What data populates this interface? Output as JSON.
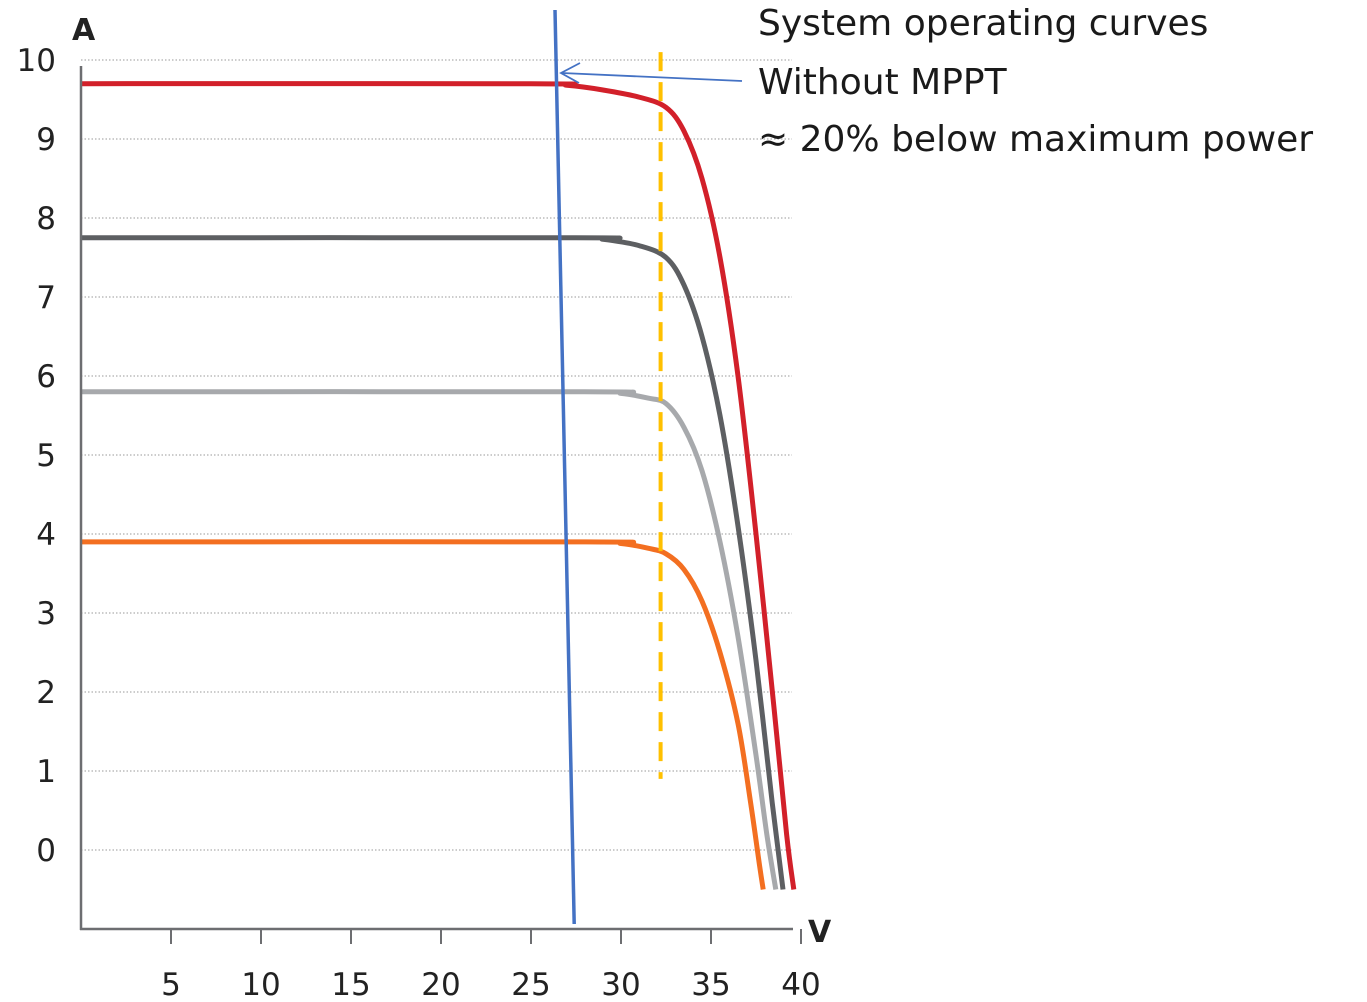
{
  "chart_data": {
    "type": "line",
    "xlabel": "V",
    "ylabel": "A",
    "xlim": [
      0,
      40
    ],
    "ylim": [
      -0.5,
      10
    ],
    "x_ticks": [
      "5",
      "10",
      "15",
      "20",
      "25",
      "30",
      "35",
      "40"
    ],
    "y_ticks": [
      "0",
      "1",
      "2",
      "3",
      "4",
      "5",
      "6",
      "7",
      "8",
      "9",
      "10"
    ],
    "grid": "horizontal-dotted",
    "series": [
      {
        "color": "#d2202a",
        "isc": 9.7,
        "knee_v": 32.5,
        "knee_i": 9.4,
        "voc": 39.6,
        "points": [
          [
            0,
            9.7
          ],
          [
            25,
            9.7
          ],
          [
            27,
            9.68
          ],
          [
            29,
            9.62
          ],
          [
            31,
            9.53
          ],
          [
            32.5,
            9.4
          ],
          [
            33.5,
            9.1
          ],
          [
            34.5,
            8.5
          ],
          [
            35.5,
            7.5
          ],
          [
            36.5,
            6.0
          ],
          [
            37.5,
            4.0
          ],
          [
            38.5,
            1.8
          ],
          [
            39.2,
            0.2
          ],
          [
            39.6,
            -0.5
          ]
        ]
      },
      {
        "color": "#5d5f62",
        "isc": 7.75,
        "knee_v": 32.5,
        "knee_i": 7.5,
        "voc": 39.0,
        "points": [
          [
            0,
            7.75
          ],
          [
            27.5,
            7.75
          ],
          [
            29,
            7.73
          ],
          [
            31,
            7.65
          ],
          [
            32.5,
            7.5
          ],
          [
            33.5,
            7.15
          ],
          [
            34.5,
            6.5
          ],
          [
            35.5,
            5.5
          ],
          [
            36.5,
            4.1
          ],
          [
            37.5,
            2.4
          ],
          [
            38.4,
            0.6
          ],
          [
            39.0,
            -0.5
          ]
        ]
      },
      {
        "color": "#a7a9ac",
        "isc": 5.8,
        "knee_v": 32.5,
        "knee_i": 5.65,
        "voc": 38.6,
        "points": [
          [
            0,
            5.8
          ],
          [
            28,
            5.8
          ],
          [
            30,
            5.78
          ],
          [
            31.5,
            5.72
          ],
          [
            32.5,
            5.65
          ],
          [
            33.5,
            5.35
          ],
          [
            34.5,
            4.8
          ],
          [
            35.5,
            3.9
          ],
          [
            36.5,
            2.7
          ],
          [
            37.5,
            1.2
          ],
          [
            38.1,
            0.2
          ],
          [
            38.6,
            -0.5
          ]
        ]
      },
      {
        "color": "#f36f21",
        "isc": 3.9,
        "knee_v": 32.5,
        "knee_i": 3.75,
        "voc": 37.9,
        "points": [
          [
            0,
            3.9
          ],
          [
            28,
            3.9
          ],
          [
            30,
            3.88
          ],
          [
            31.5,
            3.82
          ],
          [
            32.5,
            3.75
          ],
          [
            33.5,
            3.55
          ],
          [
            34.5,
            3.15
          ],
          [
            35.5,
            2.5
          ],
          [
            36.5,
            1.6
          ],
          [
            37.2,
            0.6
          ],
          [
            37.7,
            -0.2
          ],
          [
            37.9,
            -0.5
          ]
        ]
      }
    ],
    "operating_line": {
      "color": "#4472c4",
      "v_top": 26.8,
      "v_bottom": 27.4,
      "label": "System operating curves"
    },
    "mpp_line": {
      "color": "#ffc000",
      "v": 32.2,
      "i_top": 10.1,
      "i_bottom": 0.9,
      "style": "dashed"
    },
    "annotations": [
      "System operating curves",
      "Without MPPT",
      "≈ 20% below maximum power"
    ]
  }
}
